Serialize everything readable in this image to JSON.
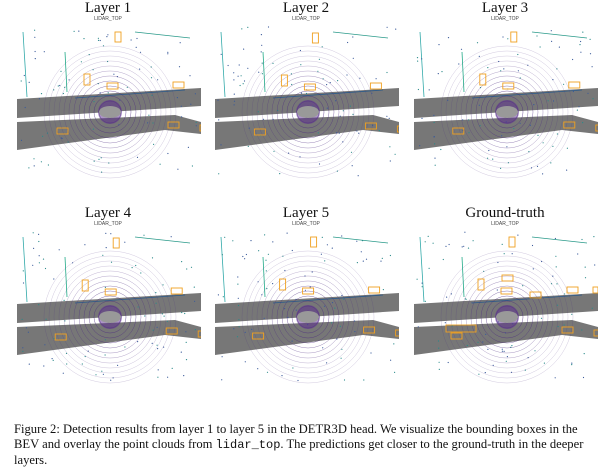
{
  "panels": [
    {
      "title": "Layer 1",
      "subtitle": "LIDAR_TOP"
    },
    {
      "title": "Layer 2",
      "subtitle": "LIDAR_TOP"
    },
    {
      "title": "Layer 3",
      "subtitle": "LIDAR_TOP"
    },
    {
      "title": "Layer 4",
      "subtitle": "LIDAR_TOP"
    },
    {
      "title": "Layer 5",
      "subtitle": "LIDAR_TOP"
    },
    {
      "title": "Ground-truth",
      "subtitle": "LIDAR_TOP"
    }
  ],
  "caption": {
    "part1": "Figure 2: Detection results from layer 1 to layer 5 in the DETR3D head. We visualize the bounding boxes in the BEV and overlay the point clouds from ",
    "code": "lidar_top",
    "part2": ". The predictions get closer to the ground-truth in the deeper layers."
  },
  "colors": {
    "box": "#f0a020",
    "road": "#777777",
    "rings": "#4b2a7f",
    "points": "#2a8a8a"
  }
}
